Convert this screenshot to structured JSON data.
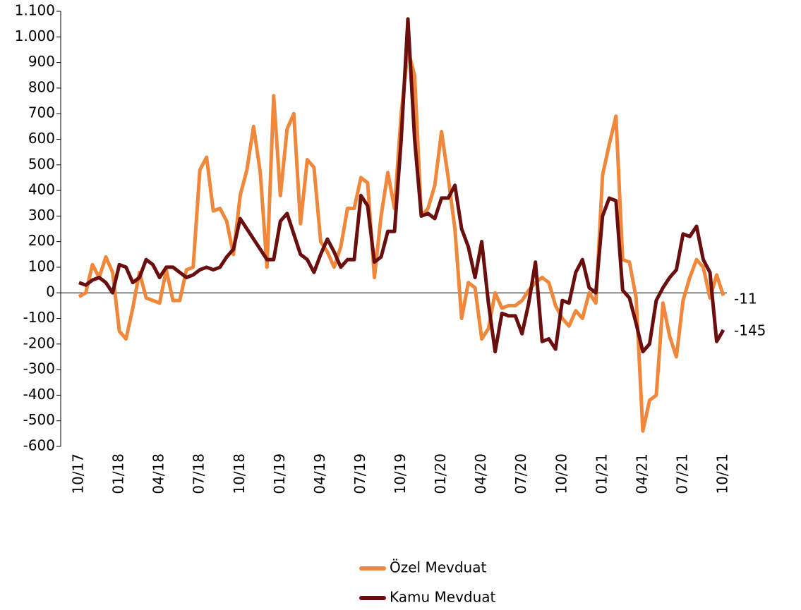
{
  "chart_data": {
    "type": "line",
    "categories": [
      "10/17",
      null,
      null,
      null,
      null,
      null,
      "01/18",
      null,
      null,
      null,
      null,
      null,
      "04/18",
      null,
      null,
      null,
      null,
      null,
      "07/18",
      null,
      null,
      null,
      null,
      null,
      "10/18",
      null,
      null,
      null,
      null,
      null,
      "01/19",
      null,
      null,
      null,
      null,
      null,
      "04/19",
      null,
      null,
      null,
      null,
      null,
      "07/19",
      null,
      null,
      null,
      null,
      null,
      "10/19",
      null,
      null,
      null,
      null,
      null,
      "01/20",
      null,
      null,
      null,
      null,
      null,
      "04/20",
      null,
      null,
      null,
      null,
      null,
      "07/20",
      null,
      null,
      null,
      null,
      null,
      "10/20",
      null,
      null,
      null,
      null,
      null,
      "01/21",
      null,
      null,
      null,
      null,
      null,
      "04/21",
      null,
      null,
      null,
      null,
      null,
      "07/21",
      null,
      null,
      null,
      null,
      null,
      "10/21"
    ],
    "series": [
      {
        "name": "Özel Mevduat",
        "color": "#f0873a",
        "values": [
          -15,
          0,
          110,
          60,
          140,
          80,
          -150,
          -180,
          -60,
          80,
          -20,
          -30,
          -40,
          90,
          -30,
          -30,
          90,
          100,
          480,
          530,
          320,
          330,
          280,
          150,
          380,
          480,
          650,
          470,
          100,
          770,
          380,
          640,
          700,
          270,
          520,
          490,
          200,
          160,
          100,
          180,
          330,
          330,
          450,
          430,
          60,
          300,
          470,
          330,
          700,
          950,
          850,
          300,
          330,
          420,
          630,
          450,
          250,
          -100,
          40,
          20,
          -180,
          -140,
          0,
          -60,
          -50,
          -50,
          -30,
          10,
          40,
          60,
          40,
          -50,
          -100,
          -130,
          -70,
          -100,
          0,
          -40,
          460,
          580,
          690,
          130,
          120,
          -20,
          -540,
          -420,
          -400,
          -40,
          -170,
          -250,
          -30,
          60,
          130,
          100,
          -20,
          70,
          -11
        ]
      },
      {
        "name": "Kamu Mevduat",
        "color": "#6b0e0e",
        "values": [
          40,
          30,
          50,
          60,
          40,
          0,
          110,
          100,
          40,
          60,
          130,
          110,
          60,
          100,
          100,
          80,
          60,
          70,
          90,
          100,
          90,
          100,
          140,
          170,
          290,
          250,
          210,
          170,
          130,
          130,
          280,
          310,
          230,
          150,
          130,
          80,
          150,
          210,
          160,
          100,
          130,
          130,
          380,
          340,
          120,
          140,
          240,
          240,
          600,
          1070,
          600,
          300,
          310,
          290,
          370,
          370,
          420,
          250,
          180,
          60,
          200,
          -40,
          -230,
          -80,
          -90,
          -90,
          -160,
          -40,
          120,
          -190,
          -180,
          -220,
          -30,
          -40,
          80,
          130,
          20,
          0,
          300,
          370,
          360,
          10,
          -20,
          -120,
          -230,
          -200,
          -30,
          20,
          60,
          90,
          230,
          220,
          260,
          130,
          80,
          -190,
          -145
        ]
      }
    ],
    "end_labels": [
      "-11",
      "-145"
    ],
    "ylim": [
      -600,
      1100
    ],
    "yticks": [
      -600,
      -500,
      -400,
      -300,
      -200,
      -100,
      0,
      100,
      200,
      300,
      400,
      500,
      600,
      700,
      800,
      900,
      {
        "value": 1000,
        "label": "1.000"
      },
      {
        "value": 1100,
        "label": "1.100"
      }
    ]
  }
}
